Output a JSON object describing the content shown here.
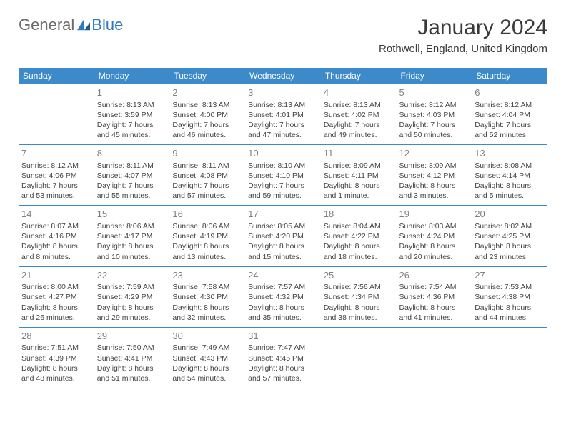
{
  "logo": {
    "text1": "General",
    "text2": "Blue"
  },
  "title": "January 2024",
  "location": "Rothwell, England, United Kingdom",
  "colors": {
    "header_bg": "#3c8ac9",
    "header_text": "#ffffff",
    "border": "#3c8ac9",
    "daynum": "#808080",
    "body_text": "#444444",
    "logo_gray": "#6b6b6b",
    "logo_blue": "#2f7bbf"
  },
  "days_of_week": [
    "Sunday",
    "Monday",
    "Tuesday",
    "Wednesday",
    "Thursday",
    "Friday",
    "Saturday"
  ],
  "weeks": [
    [
      null,
      {
        "n": "1",
        "sr": "Sunrise: 8:13 AM",
        "ss": "Sunset: 3:59 PM",
        "d1": "Daylight: 7 hours",
        "d2": "and 45 minutes."
      },
      {
        "n": "2",
        "sr": "Sunrise: 8:13 AM",
        "ss": "Sunset: 4:00 PM",
        "d1": "Daylight: 7 hours",
        "d2": "and 46 minutes."
      },
      {
        "n": "3",
        "sr": "Sunrise: 8:13 AM",
        "ss": "Sunset: 4:01 PM",
        "d1": "Daylight: 7 hours",
        "d2": "and 47 minutes."
      },
      {
        "n": "4",
        "sr": "Sunrise: 8:13 AM",
        "ss": "Sunset: 4:02 PM",
        "d1": "Daylight: 7 hours",
        "d2": "and 49 minutes."
      },
      {
        "n": "5",
        "sr": "Sunrise: 8:12 AM",
        "ss": "Sunset: 4:03 PM",
        "d1": "Daylight: 7 hours",
        "d2": "and 50 minutes."
      },
      {
        "n": "6",
        "sr": "Sunrise: 8:12 AM",
        "ss": "Sunset: 4:04 PM",
        "d1": "Daylight: 7 hours",
        "d2": "and 52 minutes."
      }
    ],
    [
      {
        "n": "7",
        "sr": "Sunrise: 8:12 AM",
        "ss": "Sunset: 4:06 PM",
        "d1": "Daylight: 7 hours",
        "d2": "and 53 minutes."
      },
      {
        "n": "8",
        "sr": "Sunrise: 8:11 AM",
        "ss": "Sunset: 4:07 PM",
        "d1": "Daylight: 7 hours",
        "d2": "and 55 minutes."
      },
      {
        "n": "9",
        "sr": "Sunrise: 8:11 AM",
        "ss": "Sunset: 4:08 PM",
        "d1": "Daylight: 7 hours",
        "d2": "and 57 minutes."
      },
      {
        "n": "10",
        "sr": "Sunrise: 8:10 AM",
        "ss": "Sunset: 4:10 PM",
        "d1": "Daylight: 7 hours",
        "d2": "and 59 minutes."
      },
      {
        "n": "11",
        "sr": "Sunrise: 8:09 AM",
        "ss": "Sunset: 4:11 PM",
        "d1": "Daylight: 8 hours",
        "d2": "and 1 minute."
      },
      {
        "n": "12",
        "sr": "Sunrise: 8:09 AM",
        "ss": "Sunset: 4:12 PM",
        "d1": "Daylight: 8 hours",
        "d2": "and 3 minutes."
      },
      {
        "n": "13",
        "sr": "Sunrise: 8:08 AM",
        "ss": "Sunset: 4:14 PM",
        "d1": "Daylight: 8 hours",
        "d2": "and 5 minutes."
      }
    ],
    [
      {
        "n": "14",
        "sr": "Sunrise: 8:07 AM",
        "ss": "Sunset: 4:16 PM",
        "d1": "Daylight: 8 hours",
        "d2": "and 8 minutes."
      },
      {
        "n": "15",
        "sr": "Sunrise: 8:06 AM",
        "ss": "Sunset: 4:17 PM",
        "d1": "Daylight: 8 hours",
        "d2": "and 10 minutes."
      },
      {
        "n": "16",
        "sr": "Sunrise: 8:06 AM",
        "ss": "Sunset: 4:19 PM",
        "d1": "Daylight: 8 hours",
        "d2": "and 13 minutes."
      },
      {
        "n": "17",
        "sr": "Sunrise: 8:05 AM",
        "ss": "Sunset: 4:20 PM",
        "d1": "Daylight: 8 hours",
        "d2": "and 15 minutes."
      },
      {
        "n": "18",
        "sr": "Sunrise: 8:04 AM",
        "ss": "Sunset: 4:22 PM",
        "d1": "Daylight: 8 hours",
        "d2": "and 18 minutes."
      },
      {
        "n": "19",
        "sr": "Sunrise: 8:03 AM",
        "ss": "Sunset: 4:24 PM",
        "d1": "Daylight: 8 hours",
        "d2": "and 20 minutes."
      },
      {
        "n": "20",
        "sr": "Sunrise: 8:02 AM",
        "ss": "Sunset: 4:25 PM",
        "d1": "Daylight: 8 hours",
        "d2": "and 23 minutes."
      }
    ],
    [
      {
        "n": "21",
        "sr": "Sunrise: 8:00 AM",
        "ss": "Sunset: 4:27 PM",
        "d1": "Daylight: 8 hours",
        "d2": "and 26 minutes."
      },
      {
        "n": "22",
        "sr": "Sunrise: 7:59 AM",
        "ss": "Sunset: 4:29 PM",
        "d1": "Daylight: 8 hours",
        "d2": "and 29 minutes."
      },
      {
        "n": "23",
        "sr": "Sunrise: 7:58 AM",
        "ss": "Sunset: 4:30 PM",
        "d1": "Daylight: 8 hours",
        "d2": "and 32 minutes."
      },
      {
        "n": "24",
        "sr": "Sunrise: 7:57 AM",
        "ss": "Sunset: 4:32 PM",
        "d1": "Daylight: 8 hours",
        "d2": "and 35 minutes."
      },
      {
        "n": "25",
        "sr": "Sunrise: 7:56 AM",
        "ss": "Sunset: 4:34 PM",
        "d1": "Daylight: 8 hours",
        "d2": "and 38 minutes."
      },
      {
        "n": "26",
        "sr": "Sunrise: 7:54 AM",
        "ss": "Sunset: 4:36 PM",
        "d1": "Daylight: 8 hours",
        "d2": "and 41 minutes."
      },
      {
        "n": "27",
        "sr": "Sunrise: 7:53 AM",
        "ss": "Sunset: 4:38 PM",
        "d1": "Daylight: 8 hours",
        "d2": "and 44 minutes."
      }
    ],
    [
      {
        "n": "28",
        "sr": "Sunrise: 7:51 AM",
        "ss": "Sunset: 4:39 PM",
        "d1": "Daylight: 8 hours",
        "d2": "and 48 minutes."
      },
      {
        "n": "29",
        "sr": "Sunrise: 7:50 AM",
        "ss": "Sunset: 4:41 PM",
        "d1": "Daylight: 8 hours",
        "d2": "and 51 minutes."
      },
      {
        "n": "30",
        "sr": "Sunrise: 7:49 AM",
        "ss": "Sunset: 4:43 PM",
        "d1": "Daylight: 8 hours",
        "d2": "and 54 minutes."
      },
      {
        "n": "31",
        "sr": "Sunrise: 7:47 AM",
        "ss": "Sunset: 4:45 PM",
        "d1": "Daylight: 8 hours",
        "d2": "and 57 minutes."
      },
      null,
      null,
      null
    ]
  ]
}
